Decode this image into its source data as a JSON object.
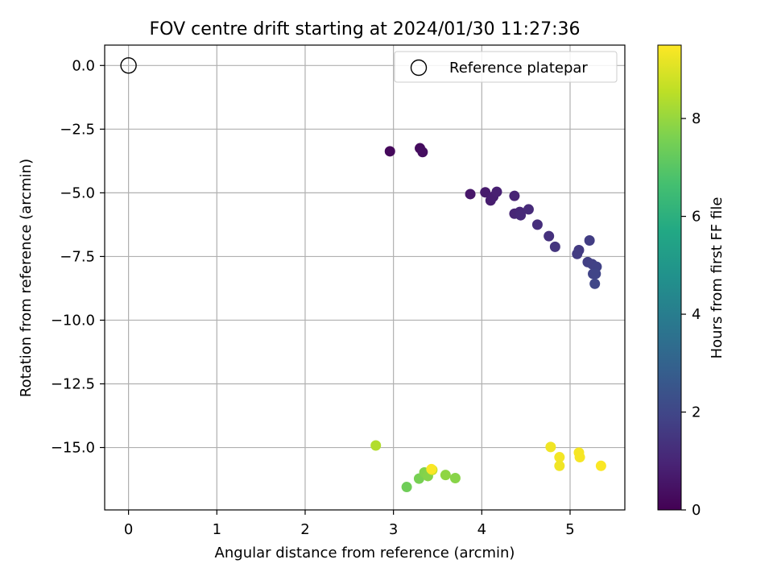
{
  "chart_data": {
    "type": "scatter",
    "title": "FOV centre drift starting at 2024/01/30 11:27:36",
    "xlabel": "Angular distance from reference (arcmin)",
    "ylabel": "Rotation from reference (arcmin)",
    "xlim": [
      -0.27,
      5.62
    ],
    "ylim": [
      -17.45,
      0.8
    ],
    "x_ticks": [
      0,
      1,
      2,
      3,
      4,
      5
    ],
    "y_ticks": [
      0.0,
      -2.5,
      -5.0,
      -7.5,
      -10.0,
      -12.5,
      -15.0
    ],
    "x_tick_labels": [
      "0",
      "1",
      "2",
      "3",
      "4",
      "5"
    ],
    "y_tick_labels": [
      "0.0",
      "−2.5",
      "−5.0",
      "−7.5",
      "−10.0",
      "−12.5",
      "−15.0"
    ],
    "grid": true,
    "legend": {
      "position": "top-right",
      "entries": [
        {
          "label": "Reference platepar",
          "marker": "hollow-circle"
        }
      ]
    },
    "reference_point": {
      "x": 0,
      "y": 0
    },
    "colormap": "viridis",
    "colorbar": {
      "label": "Hours from first FF file",
      "range": [
        0,
        9.5
      ],
      "ticks": [
        0,
        2,
        4,
        6,
        8
      ],
      "tick_labels": [
        "0",
        "2",
        "4",
        "6",
        "8"
      ]
    },
    "points": [
      {
        "x": 2.96,
        "y": -3.37,
        "c": 0.2
      },
      {
        "x": 3.3,
        "y": -3.25,
        "c": 0.3
      },
      {
        "x": 3.33,
        "y": -3.4,
        "c": 0.35
      },
      {
        "x": 3.87,
        "y": -5.05,
        "c": 0.6
      },
      {
        "x": 4.04,
        "y": -4.98,
        "c": 0.7
      },
      {
        "x": 4.1,
        "y": -5.3,
        "c": 0.75
      },
      {
        "x": 4.13,
        "y": -5.15,
        "c": 0.8
      },
      {
        "x": 4.17,
        "y": -4.96,
        "c": 0.85
      },
      {
        "x": 4.37,
        "y": -5.12,
        "c": 0.95
      },
      {
        "x": 4.37,
        "y": -5.82,
        "c": 1.0
      },
      {
        "x": 4.43,
        "y": -5.75,
        "c": 1.05
      },
      {
        "x": 4.44,
        "y": -5.88,
        "c": 1.1
      },
      {
        "x": 4.53,
        "y": -5.65,
        "c": 1.15
      },
      {
        "x": 4.63,
        "y": -6.25,
        "c": 1.25
      },
      {
        "x": 4.76,
        "y": -6.7,
        "c": 1.35
      },
      {
        "x": 4.83,
        "y": -7.12,
        "c": 1.45
      },
      {
        "x": 5.1,
        "y": -7.25,
        "c": 1.6
      },
      {
        "x": 5.08,
        "y": -7.4,
        "c": 1.65
      },
      {
        "x": 5.22,
        "y": -6.87,
        "c": 1.7
      },
      {
        "x": 5.2,
        "y": -7.72,
        "c": 1.75
      },
      {
        "x": 5.25,
        "y": -7.8,
        "c": 1.8
      },
      {
        "x": 5.3,
        "y": -7.9,
        "c": 1.85
      },
      {
        "x": 5.26,
        "y": -8.18,
        "c": 1.9
      },
      {
        "x": 5.29,
        "y": -8.18,
        "c": 1.95
      },
      {
        "x": 5.28,
        "y": -8.57,
        "c": 2.0
      },
      {
        "x": 2.8,
        "y": -14.92,
        "c": 8.4
      },
      {
        "x": 3.15,
        "y": -16.55,
        "c": 7.4
      },
      {
        "x": 3.29,
        "y": -16.22,
        "c": 7.55
      },
      {
        "x": 3.35,
        "y": -15.98,
        "c": 7.7
      },
      {
        "x": 3.39,
        "y": -16.12,
        "c": 7.75
      },
      {
        "x": 3.44,
        "y": -15.88,
        "c": 8.7
      },
      {
        "x": 3.59,
        "y": -16.08,
        "c": 7.9
      },
      {
        "x": 3.7,
        "y": -16.2,
        "c": 7.8
      },
      {
        "x": 3.43,
        "y": -15.85,
        "c": 9.45
      },
      {
        "x": 4.78,
        "y": -14.98,
        "c": 9.3
      },
      {
        "x": 4.88,
        "y": -15.38,
        "c": 9.35
      },
      {
        "x": 4.88,
        "y": -15.72,
        "c": 9.3
      },
      {
        "x": 5.1,
        "y": -15.2,
        "c": 9.4
      },
      {
        "x": 5.11,
        "y": -15.38,
        "c": 9.4
      },
      {
        "x": 5.35,
        "y": -15.72,
        "c": 9.45
      }
    ]
  }
}
